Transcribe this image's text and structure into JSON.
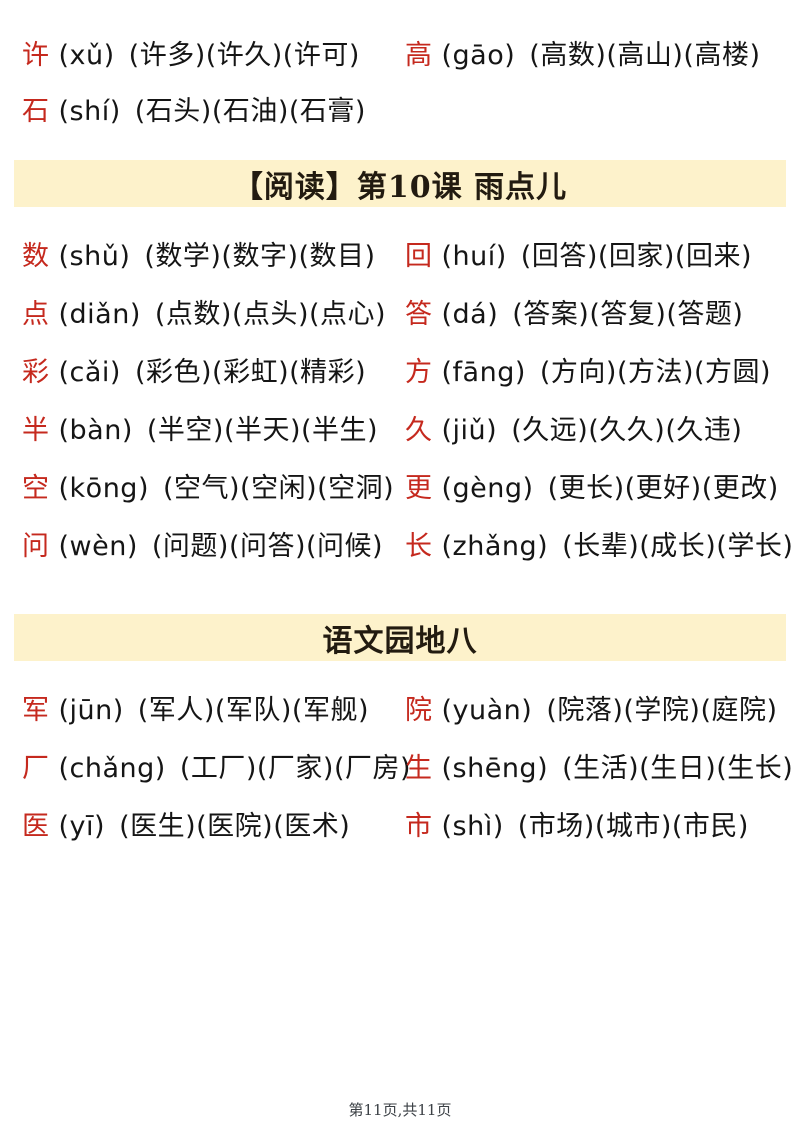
{
  "colors": {
    "headword_red": "#c5291e",
    "body_text": "#151515",
    "banner_background": "#fdf2cb",
    "banner_text": "#221b10",
    "footer_text": "#3c4146",
    "page_background": "#ffffff"
  },
  "sections": [
    {
      "rows": [
        {
          "left": {
            "char": "许",
            "pinyin": "(xǔ)",
            "words": "(许多)(许久)(许可)"
          },
          "right": {
            "char": "高",
            "pinyin": "(gāo)",
            "words": "(高数)(高山)(高楼)"
          }
        },
        {
          "left": {
            "char": "石",
            "pinyin": "(shí)",
            "words": "(石头)(石油)(石膏)"
          },
          "right": null
        }
      ]
    },
    {
      "banner": "【阅读】第10课 雨点儿",
      "rows": [
        {
          "left": {
            "char": "数",
            "pinyin": "(shǔ)",
            "words": "(数学)(数字)(数目)"
          },
          "right": {
            "char": "回",
            "pinyin": "(huí)",
            "words": "(回答)(回家)(回来)"
          }
        },
        {
          "left": {
            "char": "点",
            "pinyin": "(diǎn)",
            "words": "(点数)(点头)(点心)"
          },
          "right": {
            "char": "答",
            "pinyin": "(dá)",
            "words": "(答案)(答复)(答题)"
          }
        },
        {
          "left": {
            "char": "彩",
            "pinyin": "(cǎi)",
            "words": "(彩色)(彩虹)(精彩)"
          },
          "right": {
            "char": "方",
            "pinyin": "(fāng)",
            "words": "(方向)(方法)(方圆)"
          }
        },
        {
          "left": {
            "char": "半",
            "pinyin": "(bàn)",
            "words": "(半空)(半天)(半生)"
          },
          "right": {
            "char": "久",
            "pinyin": "(jiǔ)",
            "words": "(久远)(久久)(久违)"
          }
        },
        {
          "left": {
            "char": "空",
            "pinyin": "(kōng)",
            "words": "(空气)(空闲)(空洞)"
          },
          "right": {
            "char": "更",
            "pinyin": "(gèng)",
            "words": "(更长)(更好)(更改)"
          }
        },
        {
          "left": {
            "char": "问",
            "pinyin": "(wèn)",
            "words": "(问题)(问答)(问候)"
          },
          "right": {
            "char": "长",
            "pinyin": "(zhǎng)",
            "words": "(长辈)(成长)(学长)"
          }
        }
      ]
    },
    {
      "banner": "语文园地八",
      "rows": [
        {
          "left": {
            "char": "军",
            "pinyin": "(jūn)",
            "words": "(军人)(军队)(军舰)"
          },
          "right": {
            "char": "院",
            "pinyin": "(yuàn)",
            "words": "(院落)(学院)(庭院)"
          }
        },
        {
          "left": {
            "char": "厂",
            "pinyin": "(chǎng)",
            "words": "(工厂)(厂家)(厂房)"
          },
          "right": {
            "char": "生",
            "pinyin": "(shēng)",
            "words": "(生活)(生日)(生长)"
          }
        },
        {
          "left": {
            "char": "医",
            "pinyin": "(yī)",
            "words": "(医生)(医院)(医术)"
          },
          "right": {
            "char": "市",
            "pinyin": "(shì)",
            "words": "(市场)(城市)(市民)"
          }
        }
      ]
    }
  ],
  "footer": {
    "page_indicator": "第11页,共11页"
  }
}
